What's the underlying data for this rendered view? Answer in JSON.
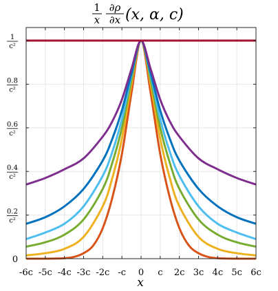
{
  "chart_data": {
    "type": "line",
    "title": {
      "numerator": "1",
      "denominator": "x",
      "partial_num": "∂ρ",
      "partial_den": "∂x",
      "args": "(x, α, c)"
    },
    "xlabel": "x",
    "ylabel": "",
    "xlim": [
      -6,
      6
    ],
    "ylim": [
      0,
      1.06
    ],
    "grid": true,
    "x_ticks": [
      {
        "value": -6,
        "label": "-6c"
      },
      {
        "value": -5,
        "label": "-5c"
      },
      {
        "value": -4,
        "label": "-4c"
      },
      {
        "value": -3,
        "label": "-3c"
      },
      {
        "value": -2,
        "label": "-2c"
      },
      {
        "value": -1,
        "label": "-c"
      },
      {
        "value": 0,
        "label": "0"
      },
      {
        "value": 1,
        "label": "c"
      },
      {
        "value": 2,
        "label": "2c"
      },
      {
        "value": 3,
        "label": "3c"
      },
      {
        "value": 4,
        "label": "4c"
      },
      {
        "value": 5,
        "label": "5c"
      },
      {
        "value": 6,
        "label": "6c"
      }
    ],
    "y_ticks": [
      {
        "value": 0,
        "num": "0",
        "den": ""
      },
      {
        "value": 0.2,
        "num": "0.2",
        "den": "c²"
      },
      {
        "value": 0.4,
        "num": "0.4",
        "den": "c²"
      },
      {
        "value": 0.6,
        "num": "0.6",
        "den": "c²"
      },
      {
        "value": 0.8,
        "num": "0.8",
        "den": "c²"
      },
      {
        "value": 1,
        "num": "1",
        "den": "c²"
      }
    ],
    "series": [
      {
        "color": "#A2142F",
        "x": [
          -6,
          -4,
          -2,
          0,
          2,
          4,
          6
        ],
        "values": [
          1,
          1,
          1,
          1,
          1,
          1,
          1
        ]
      },
      {
        "color": "#7E2F8E",
        "x": [
          -6,
          -5,
          -4,
          -3,
          -2,
          -1.5,
          -1,
          -0.5,
          0,
          0.5,
          1,
          1.5,
          2,
          3,
          4,
          5,
          6
        ],
        "values": [
          0.34,
          0.37,
          0.41,
          0.46,
          0.56,
          0.63,
          0.73,
          0.87,
          1,
          0.87,
          0.73,
          0.63,
          0.56,
          0.46,
          0.41,
          0.37,
          0.34
        ]
      },
      {
        "color": "#0072BD",
        "x": [
          -6,
          -5,
          -4,
          -3,
          -2,
          -1.5,
          -1,
          -0.5,
          0,
          0.5,
          1,
          1.5,
          2,
          3,
          4,
          5,
          6
        ],
        "values": [
          0.16,
          0.19,
          0.24,
          0.32,
          0.45,
          0.55,
          0.68,
          0.85,
          1,
          0.85,
          0.68,
          0.55,
          0.45,
          0.32,
          0.24,
          0.19,
          0.16
        ]
      },
      {
        "color": "#4DBEEE",
        "x": [
          -6,
          -5,
          -4,
          -3,
          -2,
          -1.5,
          -1,
          -0.5,
          0,
          0.5,
          1,
          1.5,
          2,
          3,
          4,
          5,
          6
        ],
        "values": [
          0.09,
          0.12,
          0.16,
          0.24,
          0.38,
          0.49,
          0.64,
          0.84,
          1,
          0.84,
          0.64,
          0.49,
          0.38,
          0.24,
          0.16,
          0.12,
          0.09
        ]
      },
      {
        "color": "#77AC30",
        "x": [
          -6,
          -5,
          -4,
          -3,
          -2,
          -1.5,
          -1,
          -0.5,
          0,
          0.5,
          1,
          1.5,
          2,
          3,
          4,
          5,
          6
        ],
        "values": [
          0.055,
          0.075,
          0.11,
          0.18,
          0.32,
          0.44,
          0.6,
          0.82,
          1,
          0.82,
          0.6,
          0.44,
          0.32,
          0.18,
          0.11,
          0.075,
          0.055
        ]
      },
      {
        "color": "#EDB120",
        "x": [
          -6,
          -5,
          -4,
          -3,
          -2,
          -1.5,
          -1,
          -0.5,
          0,
          0.5,
          1,
          1.5,
          2,
          3,
          4,
          5,
          6
        ],
        "values": [
          0.015,
          0.025,
          0.045,
          0.1,
          0.24,
          0.37,
          0.55,
          0.8,
          1,
          0.8,
          0.55,
          0.37,
          0.24,
          0.1,
          0.045,
          0.025,
          0.015
        ]
      },
      {
        "color": "#D95319",
        "x": [
          -6,
          -5,
          -4,
          -3.5,
          -3,
          -2.5,
          -2,
          -1.5,
          -1,
          -0.5,
          0,
          0.5,
          1,
          1.5,
          2,
          2.5,
          3,
          3.5,
          4,
          5,
          6
        ],
        "values": [
          0,
          0,
          0.002,
          0.008,
          0.025,
          0.06,
          0.14,
          0.28,
          0.48,
          0.76,
          1,
          0.76,
          0.48,
          0.28,
          0.14,
          0.06,
          0.025,
          0.008,
          0.002,
          0,
          0
        ]
      }
    ]
  }
}
